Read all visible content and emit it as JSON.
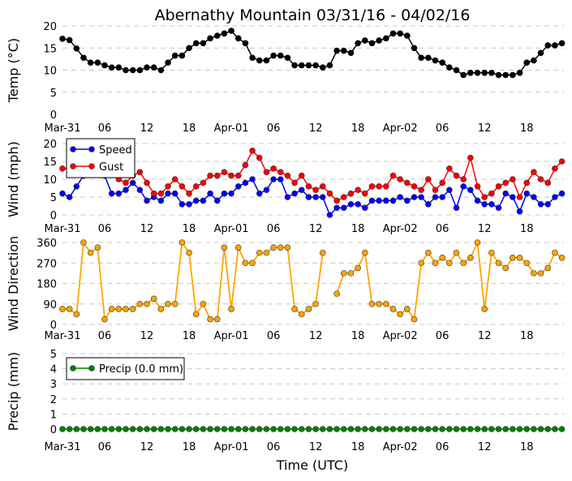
{
  "chart_data": [
    {
      "type": "line",
      "title": "Abernathy Mountain 03/31/16 - 04/02/16",
      "ylabel": "Temp (°C)",
      "ylim": [
        0,
        20
      ],
      "yticks": [
        "0",
        "5",
        "10",
        "15",
        "20"
      ],
      "xticks": [
        "Mar-31",
        "06",
        "12",
        "18",
        "Apr-01",
        "06",
        "12",
        "18",
        "Apr-02",
        "06",
        "12",
        "18"
      ],
      "x_unit": "hours since 03/31 00:00 UTC, hourly",
      "series": [
        {
          "name": "Temp",
          "color": "#000000",
          "values": [
            17.1,
            16.8,
            14.9,
            12.8,
            11.7,
            11.7,
            11.1,
            10.6,
            10.6,
            10,
            10,
            10,
            10.6,
            10.6,
            10,
            11.7,
            13.3,
            13.3,
            15,
            16.1,
            16.1,
            17.2,
            17.8,
            18.3,
            18.9,
            17.2,
            16.1,
            12.8,
            12.2,
            12.2,
            13.3,
            13.3,
            12.8,
            11.1,
            11.1,
            11.1,
            11.1,
            10.6,
            11.1,
            14.4,
            14.4,
            13.9,
            16.1,
            16.7,
            16.1,
            16.7,
            17.2,
            18.3,
            18.3,
            17.8,
            15,
            12.8,
            12.8,
            12.2,
            11.7,
            10.6,
            10,
            8.9,
            9.4,
            9.4,
            9.4,
            9.4,
            8.9,
            8.9,
            8.9,
            9.4,
            11.7,
            12.2,
            13.9,
            15.6,
            15.6,
            16.1
          ]
        }
      ]
    },
    {
      "type": "line",
      "ylabel": "Wind (mph)",
      "ylim": [
        0,
        20
      ],
      "yticks": [
        "0",
        "5",
        "10",
        "15",
        "20"
      ],
      "xticks": [
        "Mar-31",
        "06",
        "12",
        "18",
        "Apr-01",
        "06",
        "12",
        "18",
        "Apr-02",
        "06",
        "12",
        "18"
      ],
      "legend": "top-left",
      "series": [
        {
          "name": "Speed",
          "color": "#0000ff",
          "values": [
            6,
            5,
            8,
            11,
            13,
            13,
            11,
            6,
            6,
            7,
            9,
            7,
            4,
            5,
            4,
            6,
            6,
            3,
            3,
            4,
            4,
            6,
            4,
            6,
            6,
            8,
            9,
            10,
            6,
            7,
            10,
            10,
            5,
            6,
            7,
            5,
            5,
            5,
            0,
            2,
            2,
            3,
            3,
            2,
            4,
            4,
            4,
            4,
            5,
            4,
            5,
            5,
            3,
            5,
            5,
            7,
            2,
            8,
            7,
            4,
            3,
            3,
            2,
            6,
            5,
            1,
            6,
            5,
            3,
            3,
            5,
            6
          ]
        },
        {
          "name": "Gust",
          "color": "#ff0000",
          "values": [
            13,
            13,
            13,
            14,
            14,
            14,
            13,
            12,
            10,
            9,
            11,
            12,
            9,
            6,
            6,
            8,
            10,
            8,
            6,
            8,
            9,
            11,
            11,
            12,
            11,
            11,
            14,
            18,
            16,
            12,
            13,
            12,
            11,
            9,
            11,
            8,
            7,
            8,
            6,
            4,
            5,
            6,
            7,
            6,
            8,
            8,
            8,
            11,
            10,
            9,
            8,
            7,
            10,
            7,
            9,
            13,
            11,
            10,
            16,
            8,
            5,
            6,
            8,
            9,
            10,
            5,
            9,
            12,
            10,
            9,
            13,
            15
          ]
        }
      ]
    },
    {
      "type": "line",
      "ylabel": "Wind Direction",
      "ylim": [
        0,
        360
      ],
      "yticks": [
        "0",
        "90",
        "180",
        "270",
        "360"
      ],
      "xticks": [
        "Mar-31",
        "06",
        "12",
        "18",
        "Apr-01",
        "06",
        "12",
        "18",
        "Apr-02",
        "06",
        "12",
        "18"
      ],
      "series": [
        {
          "name": "Direction",
          "color": "#ffa500",
          "values": [
            68,
            68,
            45,
            360,
            315,
            338,
            23,
            68,
            68,
            68,
            68,
            90,
            90,
            113,
            68,
            90,
            90,
            360,
            315,
            45,
            90,
            23,
            23,
            338,
            68,
            338,
            270,
            270,
            315,
            315,
            338,
            338,
            338,
            68,
            45,
            68,
            90,
            315,
            null,
            135,
            225,
            225,
            248,
            315,
            90,
            90,
            90,
            68,
            45,
            68,
            23,
            270,
            315,
            270,
            293,
            270,
            315,
            270,
            293,
            360,
            68,
            315,
            270,
            248,
            293,
            293,
            270,
            225,
            225,
            248,
            315,
            293
          ]
        }
      ]
    },
    {
      "type": "line",
      "ylabel": "Precip (mm)",
      "xlabel": "Time (UTC)",
      "ylim": [
        0,
        5
      ],
      "yticks": [
        "0",
        "1",
        "2",
        "3",
        "4",
        "5"
      ],
      "xticks": [
        "Mar-31",
        "06",
        "12",
        "18",
        "Apr-01",
        "06",
        "12",
        "18",
        "Apr-02",
        "06",
        "12",
        "18"
      ],
      "legend": "top-left",
      "series": [
        {
          "name": "Precip (0.0 mm)",
          "color": "#008000",
          "values": [
            0,
            0,
            0,
            0,
            0,
            0,
            0,
            0,
            0,
            0,
            0,
            0,
            0,
            0,
            0,
            0,
            0,
            0,
            0,
            0,
            0,
            0,
            0,
            0,
            0,
            0,
            0,
            0,
            0,
            0,
            0,
            0,
            0,
            0,
            0,
            0,
            0,
            0,
            0,
            0,
            0,
            0,
            0,
            0,
            0,
            0,
            0,
            0,
            0,
            0,
            0,
            0,
            0,
            0,
            0,
            0,
            0,
            0,
            0,
            0,
            0,
            0,
            0,
            0,
            0,
            0,
            0,
            0,
            0,
            0,
            0,
            0
          ]
        }
      ]
    }
  ]
}
